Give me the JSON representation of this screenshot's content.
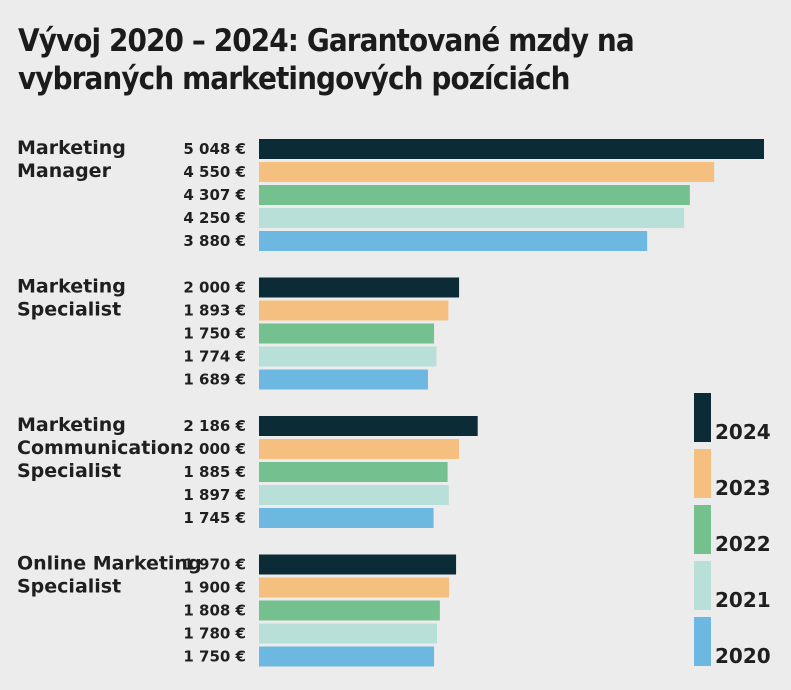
{
  "chart_data": {
    "type": "bar",
    "orientation": "horizontal",
    "title": "Vývoj 2020 – 2024: Garantované mzdy na vybraných marketingových pozíciách",
    "xlabel": "",
    "ylabel": "",
    "grid": false,
    "legend_position": "right",
    "categories": [
      [
        "Marketing",
        "Manager"
      ],
      [
        "Marketing",
        "Specialist"
      ],
      [
        "Marketing",
        "Communication",
        "Specialist"
      ],
      [
        "Online Marketing",
        "Specialist"
      ]
    ],
    "series": [
      {
        "name": "2024",
        "color": "#0b2b36",
        "values": [
          5048,
          2000,
          2186,
          1970
        ],
        "labels": [
          "5 048 €",
          "2 000 €",
          "2 186 €",
          "1 970 €"
        ]
      },
      {
        "name": "2023",
        "color": "#f5bf7f",
        "values": [
          4550,
          1893,
          2000,
          1900
        ],
        "labels": [
          "4 550 €",
          "1 893 €",
          "2 000 €",
          "1 900 €"
        ]
      },
      {
        "name": "2022",
        "color": "#74c08f",
        "values": [
          4307,
          1750,
          1885,
          1808
        ],
        "labels": [
          "4 307 €",
          "1 750 €",
          "1 885 €",
          "1 808 €"
        ]
      },
      {
        "name": "2021",
        "color": "#b9e0d8",
        "values": [
          4250,
          1774,
          1897,
          1780
        ],
        "labels": [
          "4 250 €",
          "1 774 €",
          "1 897 €",
          "1 780 €"
        ]
      },
      {
        "name": "2020",
        "color": "#6cb8e1",
        "values": [
          3880,
          1689,
          1745,
          1750
        ],
        "labels": [
          "3 880 €",
          "1 689 €",
          "1 745 €",
          "1 750 €"
        ]
      }
    ]
  }
}
